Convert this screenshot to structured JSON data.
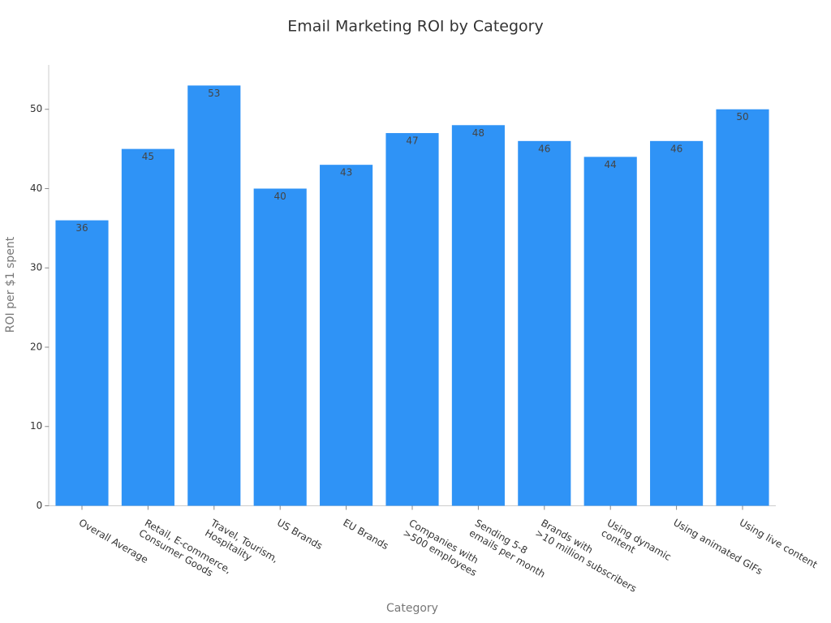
{
  "chart_data": {
    "type": "bar",
    "title": "Email Marketing ROI by Category",
    "x_label": "Category",
    "y_label": "ROI per $1 spent",
    "categories": [
      "Overall Average",
      "Retail, E-commerce,\nConsumer Goods",
      "Travel, Tourism,\nHospitality",
      "US Brands",
      "EU Brands",
      "Companies with\n>500 employees",
      "Sending 5-8\nemails per month",
      "Brands with\n>10 million subscribers",
      "Using dynamic\ncontent",
      "Using animated GIFs",
      "Using live content"
    ],
    "values": [
      36,
      45,
      53,
      40,
      43,
      47,
      48,
      46,
      44,
      46,
      50
    ],
    "color": "#2f93f6",
    "ylim": [
      0,
      55.65
    ],
    "yticks": [
      0,
      10,
      20,
      30,
      40,
      50
    ],
    "grid": false
  }
}
